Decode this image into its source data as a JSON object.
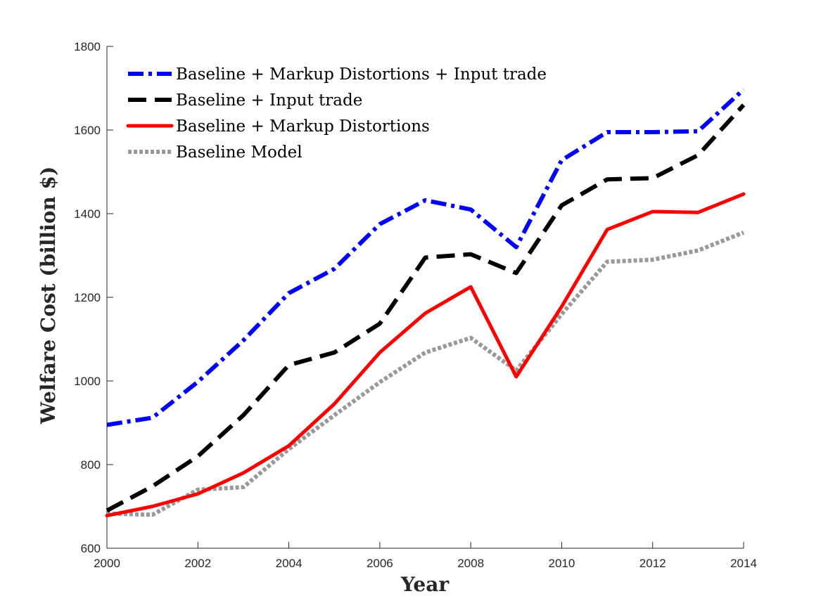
{
  "chart_data": {
    "type": "line",
    "title": "",
    "xlabel": "Year",
    "ylabel": "Welfare Cost (billion $)",
    "xlim": [
      2000,
      2014
    ],
    "ylim": [
      600,
      1800
    ],
    "xticks": [
      2000,
      2002,
      2004,
      2006,
      2008,
      2010,
      2012,
      2014
    ],
    "yticks": [
      600,
      800,
      1000,
      1200,
      1400,
      1600,
      1800
    ],
    "grid": false,
    "legend_position": "top-left",
    "x": [
      2000,
      2001,
      2002,
      2003,
      2004,
      2005,
      2006,
      2007,
      2008,
      2009,
      2010,
      2011,
      2012,
      2013,
      2014
    ],
    "series": [
      {
        "name": "Baseline + Markup Distortions + Input trade",
        "color": "#0000ff",
        "style": "dash-dot",
        "values": [
          895,
          912,
          998,
          1097,
          1210,
          1268,
          1375,
          1432,
          1410,
          1320,
          1528,
          1595,
          1595,
          1597,
          1697
        ]
      },
      {
        "name": "Baseline + Input trade",
        "color": "#000000",
        "style": "dashed",
        "values": [
          690,
          748,
          820,
          918,
          1038,
          1068,
          1137,
          1295,
          1303,
          1258,
          1420,
          1482,
          1485,
          1540,
          1660
        ]
      },
      {
        "name": "Baseline + Markup Distortions",
        "color": "#ff0000",
        "style": "solid",
        "values": [
          678,
          700,
          730,
          780,
          845,
          945,
          1068,
          1162,
          1225,
          1010,
          1178,
          1362,
          1405,
          1403,
          1447
        ]
      },
      {
        "name": "Baseline Model",
        "color": "#999999",
        "style": "dotted",
        "values": [
          683,
          680,
          740,
          746,
          837,
          918,
          997,
          1068,
          1103,
          1025,
          1160,
          1285,
          1290,
          1312,
          1355
        ]
      }
    ]
  }
}
